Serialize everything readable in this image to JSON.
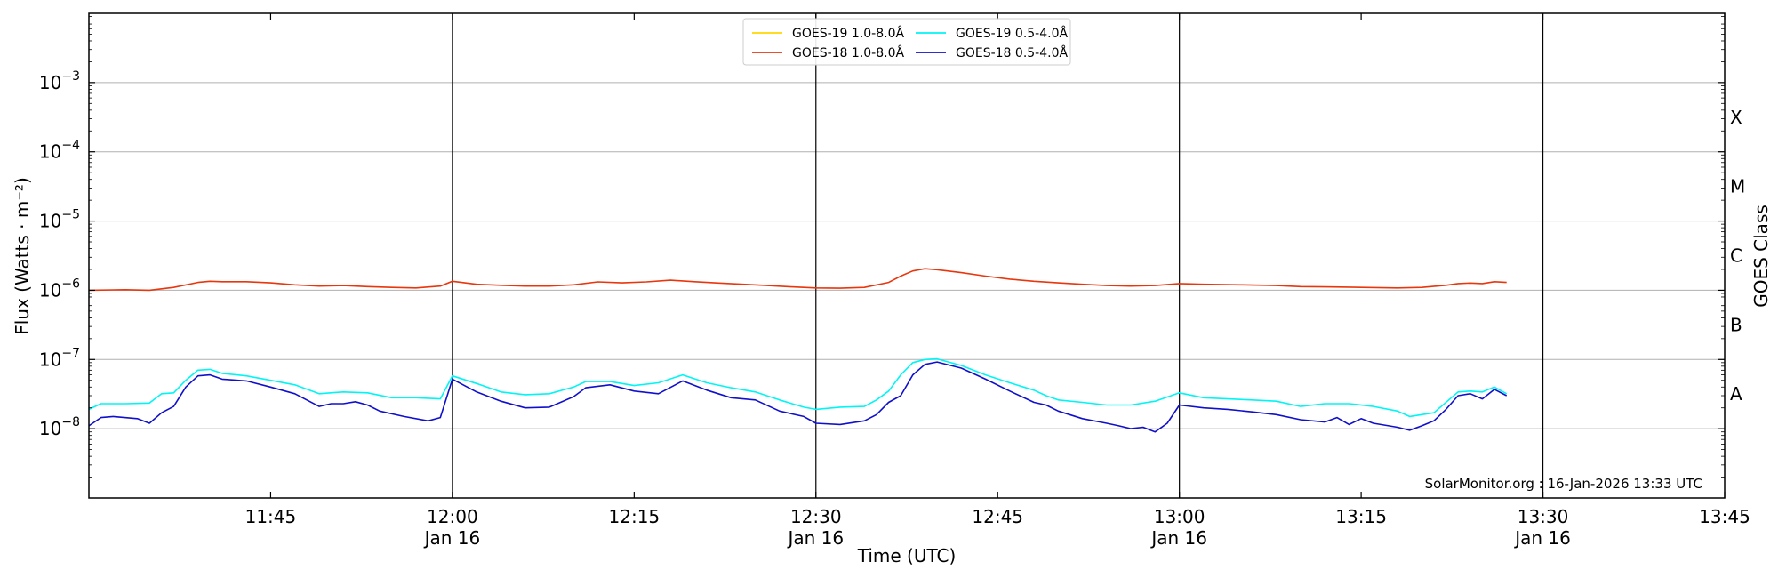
{
  "chart_data": {
    "type": "line",
    "xlabel": "Time (UTC)",
    "ylabel": "Flux (Watts · m⁻²)",
    "right_label": "GOES Class",
    "credit": "SolarMonitor.org : 16-Jan-2026 13:33 UTC",
    "y_scale": "log",
    "ylim": [
      1e-09,
      0.01
    ],
    "xlim": [
      "11:30",
      "13:45"
    ],
    "y_ticks": [
      {
        "value": 1e-08,
        "base": "10",
        "exp": "−8"
      },
      {
        "value": 1e-07,
        "base": "10",
        "exp": "−7"
      },
      {
        "value": 1e-06,
        "base": "10",
        "exp": "−6"
      },
      {
        "value": 1e-05,
        "base": "10",
        "exp": "−5"
      },
      {
        "value": 0.0001,
        "base": "10",
        "exp": "−4"
      },
      {
        "value": 0.001,
        "base": "10",
        "exp": "−3"
      }
    ],
    "x_ticks": [
      {
        "time": "11:45",
        "label": "11:45",
        "sub": ""
      },
      {
        "time": "12:00",
        "label": "12:00",
        "sub": "Jan 16"
      },
      {
        "time": "12:15",
        "label": "12:15",
        "sub": ""
      },
      {
        "time": "12:30",
        "label": "12:30",
        "sub": "Jan 16"
      },
      {
        "time": "12:45",
        "label": "12:45",
        "sub": ""
      },
      {
        "time": "13:00",
        "label": "13:00",
        "sub": "Jan 16"
      },
      {
        "time": "13:15",
        "label": "13:15",
        "sub": ""
      },
      {
        "time": "13:30",
        "label": "13:30",
        "sub": "Jan 16"
      },
      {
        "time": "13:45",
        "label": "13:45",
        "sub": ""
      }
    ],
    "vertical_lines": [
      "12:00",
      "12:30",
      "13:00",
      "13:30"
    ],
    "goes_classes": [
      {
        "label": "A",
        "value": 3.16e-08
      },
      {
        "label": "B",
        "value": 3.16e-07
      },
      {
        "label": "C",
        "value": 3.16e-06
      },
      {
        "label": "M",
        "value": 3.16e-05
      },
      {
        "label": "X",
        "value": 0.000316
      }
    ],
    "grid": "horizontal at decades",
    "legend_position": "top-center",
    "series": [
      {
        "name": "GOES-19 1.0-8.0Å",
        "color": "#ffd700",
        "x": [],
        "values": []
      },
      {
        "name": "GOES-18 1.0-8.0Å",
        "color": "#e8360d",
        "x": [
          "11:30",
          "11:33",
          "11:35",
          "11:37",
          "11:39",
          "11:40",
          "11:41",
          "11:43",
          "11:45",
          "11:47",
          "11:49",
          "11:51",
          "11:53",
          "11:55",
          "11:57",
          "11:59",
          "12:00",
          "12:02",
          "12:04",
          "12:06",
          "12:08",
          "12:10",
          "12:12",
          "12:14",
          "12:16",
          "12:18",
          "12:20",
          "12:22",
          "12:24",
          "12:26",
          "12:28",
          "12:30",
          "12:32",
          "12:34",
          "12:36",
          "12:37",
          "12:38",
          "12:39",
          "12:40",
          "12:42",
          "12:44",
          "12:46",
          "12:48",
          "12:50",
          "12:52",
          "12:54",
          "12:56",
          "12:58",
          "13:00",
          "13:02",
          "13:05",
          "13:08",
          "13:10",
          "13:12",
          "13:15",
          "13:18",
          "13:20",
          "13:22",
          "13:23",
          "13:24",
          "13:25",
          "13:26",
          "13:27"
        ],
        "values": [
          1e-06,
          1.02e-06,
          1e-06,
          1.1e-06,
          1.3e-06,
          1.35e-06,
          1.33e-06,
          1.33e-06,
          1.28e-06,
          1.2e-06,
          1.15e-06,
          1.17e-06,
          1.13e-06,
          1.1e-06,
          1.08e-06,
          1.15e-06,
          1.35e-06,
          1.22e-06,
          1.18e-06,
          1.15e-06,
          1.15e-06,
          1.2e-06,
          1.32e-06,
          1.28e-06,
          1.32e-06,
          1.4e-06,
          1.33e-06,
          1.27e-06,
          1.22e-06,
          1.17e-06,
          1.12e-06,
          1.08e-06,
          1.07e-06,
          1.1e-06,
          1.3e-06,
          1.6e-06,
          1.9e-06,
          2.05e-06,
          1.98e-06,
          1.8e-06,
          1.6e-06,
          1.45e-06,
          1.35e-06,
          1.28e-06,
          1.22e-06,
          1.17e-06,
          1.15e-06,
          1.17e-06,
          1.25e-06,
          1.22e-06,
          1.2e-06,
          1.17e-06,
          1.13e-06,
          1.12e-06,
          1.1e-06,
          1.08e-06,
          1.1e-06,
          1.18e-06,
          1.25e-06,
          1.27e-06,
          1.25e-06,
          1.33e-06,
          1.3e-06
        ]
      },
      {
        "name": "GOES-19 0.5-4.0Å",
        "color": "#00f5f5",
        "x": [
          "11:30",
          "11:31",
          "11:33",
          "11:35",
          "11:36",
          "11:37",
          "11:38",
          "11:39",
          "11:40",
          "11:41",
          "11:43",
          "11:45",
          "11:47",
          "11:49",
          "11:51",
          "11:53",
          "11:55",
          "11:57",
          "11:59",
          "12:00",
          "12:02",
          "12:04",
          "12:06",
          "12:08",
          "12:10",
          "12:11",
          "12:13",
          "12:15",
          "12:17",
          "12:19",
          "12:21",
          "12:23",
          "12:25",
          "12:27",
          "12:29",
          "12:30",
          "12:32",
          "12:34",
          "12:35",
          "12:36",
          "12:37",
          "12:38",
          "12:39",
          "12:40",
          "12:42",
          "12:44",
          "12:46",
          "12:48",
          "12:49",
          "12:50",
          "12:52",
          "12:54",
          "12:56",
          "12:58",
          "13:00",
          "13:02",
          "13:04",
          "13:06",
          "13:08",
          "13:10",
          "13:12",
          "13:14",
          "13:16",
          "13:18",
          "13:19",
          "13:21",
          "13:23",
          "13:24",
          "13:25",
          "13:26",
          "13:27"
        ],
        "values": [
          1.9e-08,
          2.3e-08,
          2.3e-08,
          2.35e-08,
          3.2e-08,
          3.3e-08,
          5e-08,
          7e-08,
          7.2e-08,
          6.3e-08,
          5.8e-08,
          5e-08,
          4.3e-08,
          3.2e-08,
          3.4e-08,
          3.3e-08,
          2.8e-08,
          2.8e-08,
          2.7e-08,
          5.8e-08,
          4.5e-08,
          3.4e-08,
          3.1e-08,
          3.2e-08,
          4e-08,
          4.8e-08,
          4.8e-08,
          4.2e-08,
          4.6e-08,
          6e-08,
          4.6e-08,
          3.9e-08,
          3.4e-08,
          2.6e-08,
          2.05e-08,
          1.9e-08,
          2.05e-08,
          2.1e-08,
          2.6e-08,
          3.5e-08,
          6e-08,
          9e-08,
          1e-07,
          1.02e-07,
          8.2e-08,
          6e-08,
          4.6e-08,
          3.6e-08,
          3e-08,
          2.6e-08,
          2.4e-08,
          2.2e-08,
          2.2e-08,
          2.5e-08,
          3.3e-08,
          2.8e-08,
          2.7e-08,
          2.6e-08,
          2.5e-08,
          2.1e-08,
          2.3e-08,
          2.3e-08,
          2.1e-08,
          1.8e-08,
          1.5e-08,
          1.7e-08,
          3.4e-08,
          3.5e-08,
          3.4e-08,
          4e-08,
          3.2e-08
        ]
      },
      {
        "name": "GOES-18 0.5-4.0Å",
        "color": "#1010cc",
        "x": [
          "11:30",
          "11:31",
          "11:32",
          "11:34",
          "11:35",
          "11:36",
          "11:37",
          "11:38",
          "11:39",
          "11:40",
          "11:41",
          "11:43",
          "11:45",
          "11:47",
          "11:49",
          "11:50",
          "11:51",
          "11:52",
          "11:53",
          "11:54",
          "11:56",
          "11:58",
          "11:59",
          "12:00",
          "12:02",
          "12:04",
          "12:06",
          "12:08",
          "12:10",
          "12:11",
          "12:13",
          "12:15",
          "12:17",
          "12:19",
          "12:21",
          "12:23",
          "12:25",
          "12:27",
          "12:29",
          "12:30",
          "12:32",
          "12:34",
          "12:35",
          "12:36",
          "12:37",
          "12:38",
          "12:39",
          "12:40",
          "12:42",
          "12:44",
          "12:46",
          "12:48",
          "12:49",
          "12:50",
          "12:52",
          "12:54",
          "12:55",
          "12:56",
          "12:57",
          "12:58",
          "12:59",
          "13:00",
          "13:02",
          "13:04",
          "13:06",
          "13:08",
          "13:10",
          "13:12",
          "13:13",
          "13:14",
          "13:15",
          "13:16",
          "13:18",
          "13:19",
          "13:20",
          "13:21",
          "13:22",
          "13:23",
          "13:24",
          "13:25",
          "13:26",
          "13:27"
        ],
        "values": [
          1.1e-08,
          1.45e-08,
          1.5e-08,
          1.4e-08,
          1.2e-08,
          1.7e-08,
          2.1e-08,
          4e-08,
          5.8e-08,
          6e-08,
          5.2e-08,
          4.9e-08,
          4e-08,
          3.2e-08,
          2.1e-08,
          2.3e-08,
          2.3e-08,
          2.45e-08,
          2.2e-08,
          1.8e-08,
          1.5e-08,
          1.3e-08,
          1.45e-08,
          5.2e-08,
          3.4e-08,
          2.5e-08,
          2e-08,
          2.05e-08,
          2.9e-08,
          3.9e-08,
          4.3e-08,
          3.5e-08,
          3.2e-08,
          4.9e-08,
          3.6e-08,
          2.8e-08,
          2.6e-08,
          1.8e-08,
          1.5e-08,
          1.2e-08,
          1.15e-08,
          1.3e-08,
          1.6e-08,
          2.4e-08,
          3e-08,
          6e-08,
          8.5e-08,
          9.2e-08,
          7.5e-08,
          5.2e-08,
          3.5e-08,
          2.4e-08,
          2.2e-08,
          1.8e-08,
          1.4e-08,
          1.2e-08,
          1.1e-08,
          1e-08,
          1.05e-08,
          9e-09,
          1.2e-08,
          2.2e-08,
          2e-08,
          1.9e-08,
          1.75e-08,
          1.6e-08,
          1.35e-08,
          1.25e-08,
          1.45e-08,
          1.15e-08,
          1.4e-08,
          1.2e-08,
          1.05e-08,
          9.5e-09,
          1.1e-08,
          1.3e-08,
          1.9e-08,
          3e-08,
          3.2e-08,
          2.7e-08,
          3.7e-08,
          3e-08
        ]
      }
    ]
  }
}
